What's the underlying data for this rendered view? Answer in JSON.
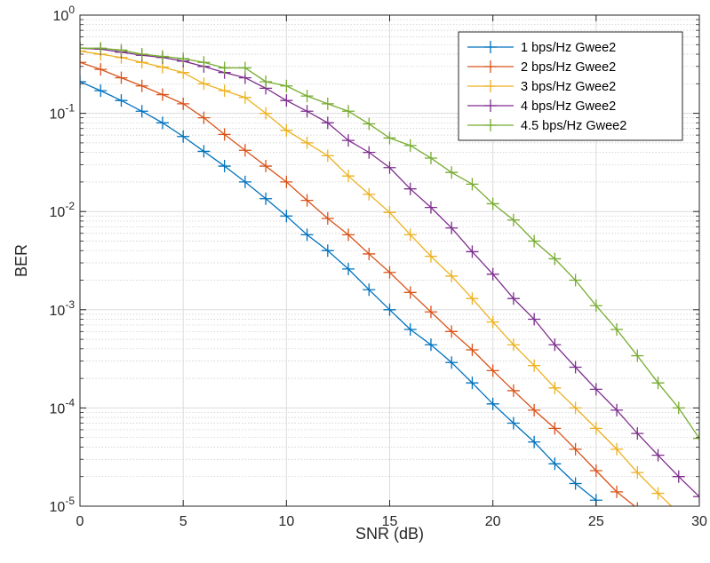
{
  "chart_data": {
    "type": "line",
    "xlabel": "SNR (dB)",
    "ylabel": "BER",
    "xlim": [
      0,
      30
    ],
    "ylim": [
      1e-05,
      1
    ],
    "yscale": "log",
    "grid": true,
    "minor_grid": true,
    "legend_position": "top-right",
    "x_ticks": [
      {
        "value": 0,
        "label": "0"
      },
      {
        "value": 5,
        "label": "5"
      },
      {
        "value": 10,
        "label": "10"
      },
      {
        "value": 15,
        "label": "15"
      },
      {
        "value": 20,
        "label": "20"
      },
      {
        "value": 25,
        "label": "25"
      },
      {
        "value": 30,
        "label": "30"
      }
    ],
    "y_ticks": [
      {
        "value": 1,
        "base": "10",
        "exp": "0"
      },
      {
        "value": 0.1,
        "base": "10",
        "exp": "-1"
      },
      {
        "value": 0.01,
        "base": "10",
        "exp": "-2"
      },
      {
        "value": 0.001,
        "base": "10",
        "exp": "-3"
      },
      {
        "value": 0.0001,
        "base": "10",
        "exp": "-4"
      },
      {
        "value": 1e-05,
        "base": "10",
        "exp": "-5"
      }
    ],
    "series": [
      {
        "name": "1 bps/Hz Gwee2",
        "color": "#0072BD",
        "x": [
          0,
          1,
          2,
          3,
          4,
          5,
          6,
          7,
          8,
          9,
          10,
          11,
          12,
          13,
          14,
          15,
          16,
          17,
          18,
          19,
          20,
          21,
          22,
          23,
          24,
          25
        ],
        "y": [
          0.21,
          0.17,
          0.135,
          0.105,
          0.08,
          0.058,
          0.041,
          0.029,
          0.02,
          0.0135,
          0.009,
          0.0058,
          0.004,
          0.0026,
          0.0016,
          0.001,
          0.00063,
          0.00044,
          0.00029,
          0.00018,
          0.00011,
          7e-05,
          4.5e-05,
          2.7e-05,
          1.7e-05,
          1.15e-05
        ]
      },
      {
        "name": "2 bps/Hz Gwee2",
        "color": "#D95319",
        "x": [
          0,
          1,
          2,
          3,
          4,
          5,
          6,
          7,
          8,
          9,
          10,
          11,
          12,
          13,
          14,
          15,
          16,
          17,
          18,
          19,
          20,
          21,
          22,
          23,
          24,
          25,
          26,
          27
        ],
        "y": [
          0.33,
          0.28,
          0.23,
          0.19,
          0.155,
          0.125,
          0.09,
          0.061,
          0.042,
          0.029,
          0.02,
          0.013,
          0.0085,
          0.0058,
          0.0037,
          0.0024,
          0.0015,
          0.00095,
          0.0006,
          0.00039,
          0.00024,
          0.00015,
          9.5e-05,
          6.2e-05,
          3.8e-05,
          2.3e-05,
          1.4e-05,
          9.5e-06
        ]
      },
      {
        "name": "3 bps/Hz Gwee2",
        "color": "#EDB120",
        "x": [
          0,
          1,
          2,
          3,
          4,
          5,
          6,
          7,
          8,
          9,
          10,
          11,
          12,
          13,
          14,
          15,
          16,
          17,
          18,
          19,
          20,
          21,
          22,
          23,
          24,
          25,
          26,
          27,
          28,
          29
        ],
        "y": [
          0.43,
          0.4,
          0.37,
          0.33,
          0.295,
          0.26,
          0.2,
          0.17,
          0.145,
          0.1,
          0.067,
          0.05,
          0.037,
          0.023,
          0.015,
          0.0098,
          0.0058,
          0.0035,
          0.0022,
          0.0013,
          0.00075,
          0.00044,
          0.00027,
          0.00016,
          0.0001,
          6.2e-05,
          3.8e-05,
          2.2e-05,
          1.35e-05,
          8.5e-06
        ]
      },
      {
        "name": "4 bps/Hz Gwee2",
        "color": "#7E2F8E",
        "x": [
          0,
          1,
          2,
          3,
          4,
          5,
          6,
          7,
          8,
          9,
          10,
          11,
          12,
          13,
          14,
          15,
          16,
          17,
          18,
          19,
          20,
          21,
          22,
          23,
          24,
          25,
          26,
          27,
          28,
          29,
          30
        ],
        "y": [
          0.46,
          0.45,
          0.42,
          0.39,
          0.37,
          0.34,
          0.3,
          0.26,
          0.23,
          0.18,
          0.135,
          0.105,
          0.08,
          0.053,
          0.04,
          0.028,
          0.017,
          0.011,
          0.0068,
          0.0039,
          0.0023,
          0.0013,
          0.0008,
          0.00044,
          0.00026,
          0.000155,
          9.5e-05,
          5.5e-05,
          3.3e-05,
          2e-05,
          1.25e-05
        ]
      },
      {
        "name": "4.5 bps/Hz Gwee2",
        "color": "#77AC30",
        "x": [
          0,
          1,
          2,
          3,
          4,
          5,
          6,
          7,
          8,
          9,
          10,
          11,
          12,
          13,
          14,
          15,
          16,
          17,
          18,
          19,
          20,
          21,
          22,
          23,
          24,
          25,
          26,
          27,
          28,
          29,
          30
        ],
        "y": [
          0.46,
          0.46,
          0.44,
          0.4,
          0.38,
          0.36,
          0.33,
          0.29,
          0.29,
          0.21,
          0.19,
          0.15,
          0.125,
          0.105,
          0.078,
          0.056,
          0.047,
          0.035,
          0.025,
          0.019,
          0.012,
          0.0082,
          0.005,
          0.0033,
          0.002,
          0.0011,
          0.00063,
          0.00034,
          0.00018,
          0.0001,
          4.9e-05
        ]
      }
    ]
  }
}
